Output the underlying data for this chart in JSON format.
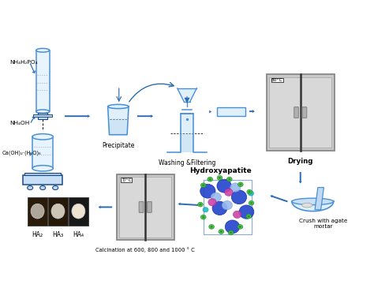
{
  "bg_color": "#ffffff",
  "arrow_color": "#2b6cb0",
  "label_color": "#000000",
  "oven_color": "#c8c8c8",
  "oven_border": "#888888",
  "lblue": "#4a90d9",
  "dblue": "#1a4a8a",
  "labels": {
    "nh4h2po4": "NH₄H₂PO₄",
    "nh4oh": "NH₄OH",
    "ca_oh": "Ca(OH)₂·(H₂O)₆",
    "precipitate": "Precipitate",
    "washing": "Washing &Filtering",
    "drying": "Drying",
    "hydroxyapatite": "Hydroxyapatite",
    "crush": "Crush with agate\nmortar",
    "calcination": "Calcination at 600, 800 and 1000 ° C",
    "ha2": "HA₂",
    "ha3": "HA₃",
    "ha4": "HA₄",
    "temp1": "80°C",
    "temp2": "T/°C"
  }
}
